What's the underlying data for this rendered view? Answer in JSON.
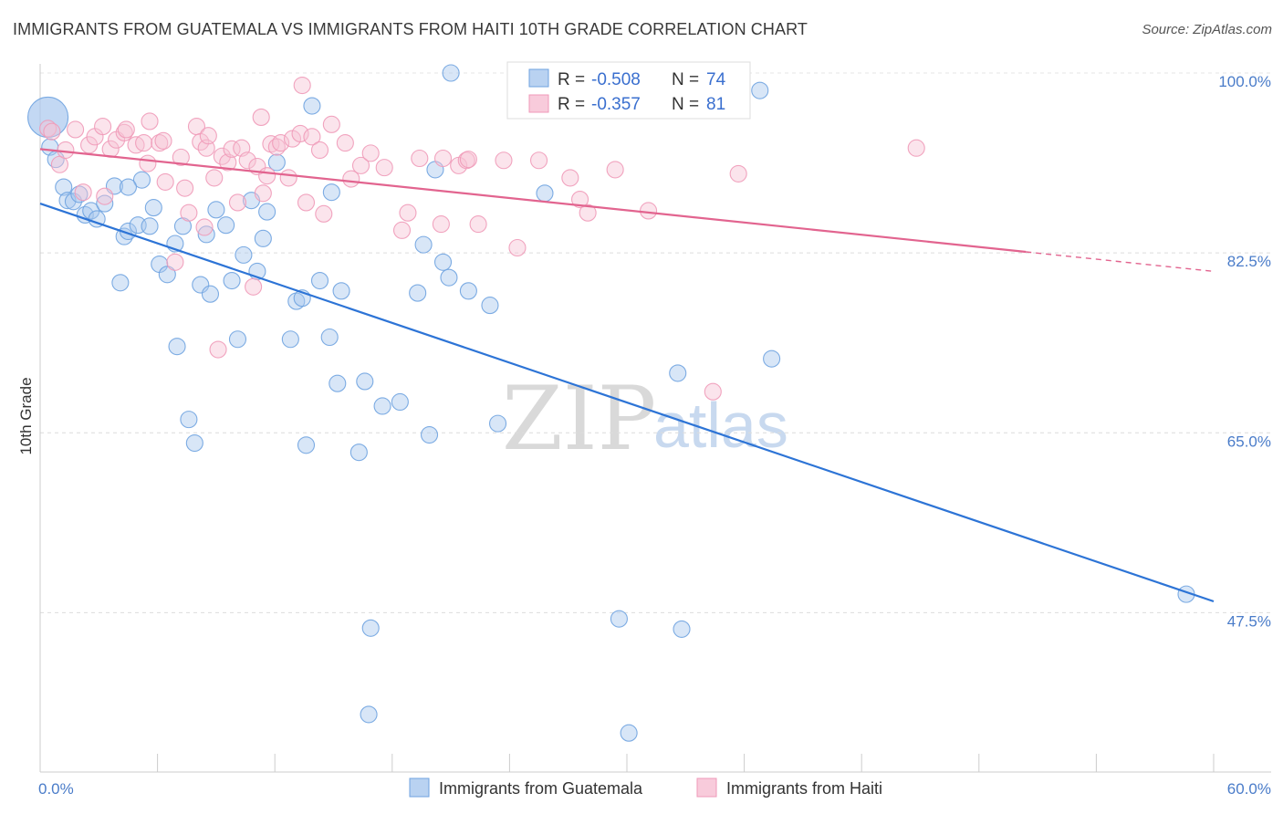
{
  "header": {
    "title": "IMMIGRANTS FROM GUATEMALA VS IMMIGRANTS FROM HAITI 10TH GRADE CORRELATION CHART",
    "source": "Source: ZipAtlas.com"
  },
  "watermark": {
    "part1": "ZIP",
    "part2": "atlas"
  },
  "legend": {
    "rows": [
      {
        "r_label": "R =",
        "r_value": "-0.508",
        "n_label": "N =",
        "n_value": "74"
      },
      {
        "r_label": "R =",
        "r_value": "-0.357",
        "n_label": "N =",
        "n_value": "81"
      }
    ]
  },
  "chart_data": {
    "type": "scatter",
    "xlabel": "",
    "ylabel": "10th Grade",
    "xlim": [
      0,
      60
    ],
    "ylim": [
      32,
      100
    ],
    "x_ticks": [
      {
        "value": 0,
        "label": "0.0%"
      },
      {
        "value": 60,
        "label": "60.0%"
      }
    ],
    "y_ticks": [
      {
        "value": 100,
        "label": "100.0%"
      },
      {
        "value": 82.5,
        "label": "82.5%"
      },
      {
        "value": 65,
        "label": "65.0%"
      },
      {
        "value": 47.5,
        "label": "47.5%"
      }
    ],
    "grid": "horizontal dashed",
    "legend_position": "top-center",
    "series": [
      {
        "name": "Immigrants from Guatemala",
        "color": "#6fa3e0",
        "fill": "#a9c8ee",
        "line_color": "#2d74d6",
        "trend": {
          "x": [
            0,
            60
          ],
          "y": [
            87.3,
            48.6
          ]
        },
        "points": [
          [
            0.4,
            95.7
          ],
          [
            0.5,
            92.8
          ],
          [
            0.8,
            91.6
          ],
          [
            1.2,
            88.9
          ],
          [
            1.4,
            87.6
          ],
          [
            1.7,
            87.5
          ],
          [
            2.0,
            88.2
          ],
          [
            2.3,
            86.2
          ],
          [
            2.6,
            86.6
          ],
          [
            2.9,
            85.8
          ],
          [
            3.3,
            87.3
          ],
          [
            3.8,
            89.0
          ],
          [
            4.1,
            79.6
          ],
          [
            4.3,
            84.1
          ],
          [
            4.5,
            84.6
          ],
          [
            5.0,
            85.2
          ],
          [
            5.2,
            89.6
          ],
          [
            5.6,
            85.1
          ],
          [
            5.8,
            86.9
          ],
          [
            6.1,
            81.4
          ],
          [
            6.5,
            80.4
          ],
          [
            6.9,
            83.4
          ],
          [
            7.0,
            73.4
          ],
          [
            7.3,
            85.1
          ],
          [
            7.6,
            66.3
          ],
          [
            7.9,
            64.0
          ],
          [
            8.2,
            79.4
          ],
          [
            8.5,
            84.3
          ],
          [
            8.7,
            78.5
          ],
          [
            9.0,
            86.7
          ],
          [
            9.5,
            85.2
          ],
          [
            9.8,
            79.8
          ],
          [
            10.1,
            74.1
          ],
          [
            10.4,
            82.3
          ],
          [
            10.8,
            87.6
          ],
          [
            11.1,
            80.7
          ],
          [
            11.4,
            83.9
          ],
          [
            11.6,
            86.5
          ],
          [
            12.1,
            91.3
          ],
          [
            12.8,
            74.1
          ],
          [
            13.1,
            77.8
          ],
          [
            13.4,
            78.1
          ],
          [
            13.6,
            63.8
          ],
          [
            13.9,
            96.8
          ],
          [
            14.3,
            79.8
          ],
          [
            14.8,
            74.3
          ],
          [
            14.9,
            88.4
          ],
          [
            15.2,
            69.8
          ],
          [
            15.4,
            78.8
          ],
          [
            16.3,
            63.1
          ],
          [
            16.6,
            70.0
          ],
          [
            16.9,
            46.0
          ],
          [
            17.5,
            67.6
          ],
          [
            18.4,
            68.0
          ],
          [
            19.3,
            78.6
          ],
          [
            19.6,
            83.3
          ],
          [
            19.9,
            64.8
          ],
          [
            20.2,
            90.6
          ],
          [
            20.6,
            81.6
          ],
          [
            20.9,
            80.1
          ],
          [
            21.0,
            100.0
          ],
          [
            21.9,
            78.8
          ],
          [
            23.0,
            77.4
          ],
          [
            23.4,
            65.9
          ],
          [
            25.8,
            88.3
          ],
          [
            29.6,
            46.9
          ],
          [
            30.1,
            35.8
          ],
          [
            32.6,
            70.8
          ],
          [
            32.8,
            45.9
          ],
          [
            36.8,
            98.3
          ],
          [
            37.4,
            72.2
          ],
          [
            58.6,
            49.3
          ],
          [
            16.8,
            37.6
          ],
          [
            4.5,
            88.9
          ]
        ]
      },
      {
        "name": "Immigrants from Haiti",
        "color": "#ef9ab8",
        "fill": "#f6c3d5",
        "line_color": "#e2648f",
        "trend": {
          "x": [
            0,
            50.4
          ],
          "y": [
            92.6,
            82.6
          ]
        },
        "trend_dashed": {
          "x": [
            50.4,
            60
          ],
          "y": [
            82.6,
            80.7
          ]
        },
        "points": [
          [
            0.4,
            94.6
          ],
          [
            0.6,
            94.3
          ],
          [
            1.0,
            91.1
          ],
          [
            1.3,
            92.5
          ],
          [
            1.8,
            94.5
          ],
          [
            2.2,
            88.4
          ],
          [
            2.5,
            93.0
          ],
          [
            2.8,
            93.8
          ],
          [
            3.2,
            94.8
          ],
          [
            3.3,
            88.0
          ],
          [
            3.6,
            92.6
          ],
          [
            3.9,
            93.5
          ],
          [
            4.3,
            94.2
          ],
          [
            4.4,
            94.5
          ],
          [
            4.9,
            93.0
          ],
          [
            5.3,
            93.2
          ],
          [
            5.5,
            91.2
          ],
          [
            5.6,
            95.3
          ],
          [
            6.1,
            93.2
          ],
          [
            6.3,
            93.4
          ],
          [
            6.4,
            89.4
          ],
          [
            6.9,
            81.6
          ],
          [
            7.2,
            91.8
          ],
          [
            7.4,
            88.8
          ],
          [
            7.6,
            86.4
          ],
          [
            8.0,
            94.8
          ],
          [
            8.2,
            93.3
          ],
          [
            8.4,
            85.0
          ],
          [
            8.5,
            92.7
          ],
          [
            8.6,
            93.9
          ],
          [
            8.9,
            89.8
          ],
          [
            9.1,
            73.1
          ],
          [
            9.3,
            91.9
          ],
          [
            9.6,
            91.3
          ],
          [
            9.8,
            92.6
          ],
          [
            10.1,
            87.4
          ],
          [
            10.3,
            92.7
          ],
          [
            10.6,
            91.5
          ],
          [
            10.9,
            79.2
          ],
          [
            11.1,
            90.9
          ],
          [
            11.3,
            95.7
          ],
          [
            11.4,
            88.3
          ],
          [
            11.6,
            90.0
          ],
          [
            11.8,
            93.1
          ],
          [
            12.1,
            92.8
          ],
          [
            12.3,
            93.2
          ],
          [
            12.7,
            89.8
          ],
          [
            12.9,
            93.6
          ],
          [
            13.3,
            94.1
          ],
          [
            13.4,
            98.8
          ],
          [
            13.6,
            87.4
          ],
          [
            13.9,
            93.8
          ],
          [
            14.3,
            92.5
          ],
          [
            14.5,
            86.3
          ],
          [
            14.9,
            95.0
          ],
          [
            15.9,
            89.7
          ],
          [
            15.6,
            93.2
          ],
          [
            16.4,
            91.0
          ],
          [
            16.9,
            92.2
          ],
          [
            17.6,
            90.8
          ],
          [
            18.5,
            84.7
          ],
          [
            18.8,
            86.4
          ],
          [
            19.4,
            91.7
          ],
          [
            20.5,
            85.3
          ],
          [
            20.6,
            91.7
          ],
          [
            21.4,
            91.0
          ],
          [
            21.8,
            91.5
          ],
          [
            21.9,
            91.6
          ],
          [
            22.4,
            85.3
          ],
          [
            23.7,
            91.5
          ],
          [
            24.4,
            83.0
          ],
          [
            25.5,
            91.5
          ],
          [
            27.1,
            89.8
          ],
          [
            27.6,
            87.7
          ],
          [
            28.0,
            86.4
          ],
          [
            29.4,
            90.6
          ],
          [
            31.1,
            86.6
          ],
          [
            33.4,
            100.0
          ],
          [
            34.4,
            69.0
          ],
          [
            35.7,
            90.2
          ],
          [
            44.8,
            92.7
          ]
        ]
      }
    ]
  },
  "bottom_legend": [
    {
      "label": "Immigrants from Guatemala"
    },
    {
      "label": "Immigrants from Haiti"
    }
  ]
}
